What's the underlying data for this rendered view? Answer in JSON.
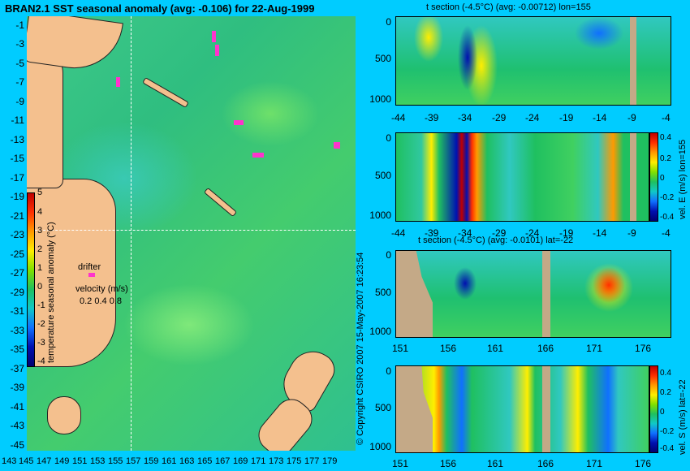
{
  "main_title": "BRAN2.1 SST seasonal anomaly (avg: -0.106) for 22-Aug-1999",
  "map": {
    "lat_labels": [
      "-1",
      "-3",
      "-5",
      "-7",
      "-9",
      "-11",
      "-13",
      "-15",
      "-17",
      "-19",
      "-21",
      "-23",
      "-25",
      "-27",
      "-29",
      "-31",
      "-33",
      "-35",
      "-37",
      "-39",
      "-41",
      "-43",
      "-45"
    ],
    "lon_labels": [
      "143",
      "145",
      "147",
      "149",
      "151",
      "153",
      "155",
      "157",
      "159",
      "161",
      "163",
      "165",
      "167",
      "169",
      "171",
      "173",
      "175",
      "177",
      "179"
    ],
    "colorbar": {
      "ticks": [
        "5",
        "4",
        "3",
        "2",
        "1",
        "0",
        "-1",
        "-2",
        "-3",
        "-4"
      ],
      "label": "temperature seasonal anomaly (°C)"
    },
    "drifter_label": "drifter",
    "velocity_label": "velocity (m/s)",
    "velocity_values": "0.2 0.4 0.8",
    "ocean_color": "#33c486",
    "land_color": "#f4c08e",
    "drifter_color": "#ff33cc"
  },
  "panels": [
    {
      "title": "t section (-4.5°C) (avg: -0.00712) lon=155",
      "x_labels": [
        "-44",
        "-39",
        "-34",
        "-29",
        "-24",
        "-19",
        "-14",
        "-9",
        "-4"
      ],
      "y_labels": [
        "0",
        "500",
        "1000"
      ],
      "side_label": "",
      "cb_ticks": []
    },
    {
      "title": "",
      "x_labels": [
        "-44",
        "-39",
        "-34",
        "-29",
        "-24",
        "-19",
        "-14",
        "-9",
        "-4"
      ],
      "y_labels": [
        "0",
        "500",
        "1000"
      ],
      "side_label": "vel. E (m/s) lon=155",
      "cb_ticks": [
        "0.4",
        "0.2",
        "0",
        "-0.2",
        "-0.4"
      ]
    },
    {
      "title": "t section (-4.5°C) (avg: -0.0101) lat=-22",
      "x_labels": [
        "151",
        "156",
        "161",
        "166",
        "171",
        "176"
      ],
      "y_labels": [
        "0",
        "500",
        "1000"
      ],
      "side_label": "",
      "cb_ticks": []
    },
    {
      "title": "",
      "x_labels": [
        "151",
        "156",
        "161",
        "166",
        "171",
        "176"
      ],
      "y_labels": [
        "0",
        "500",
        "1000"
      ],
      "side_label": "vel. S (m/s) lat=-22",
      "cb_ticks": [
        "0.4",
        "0.2",
        "0",
        "-0.2",
        "-0.4"
      ]
    }
  ],
  "credit": "© Copyright CSIRO 2007 15-May-2007 16:23:54"
}
